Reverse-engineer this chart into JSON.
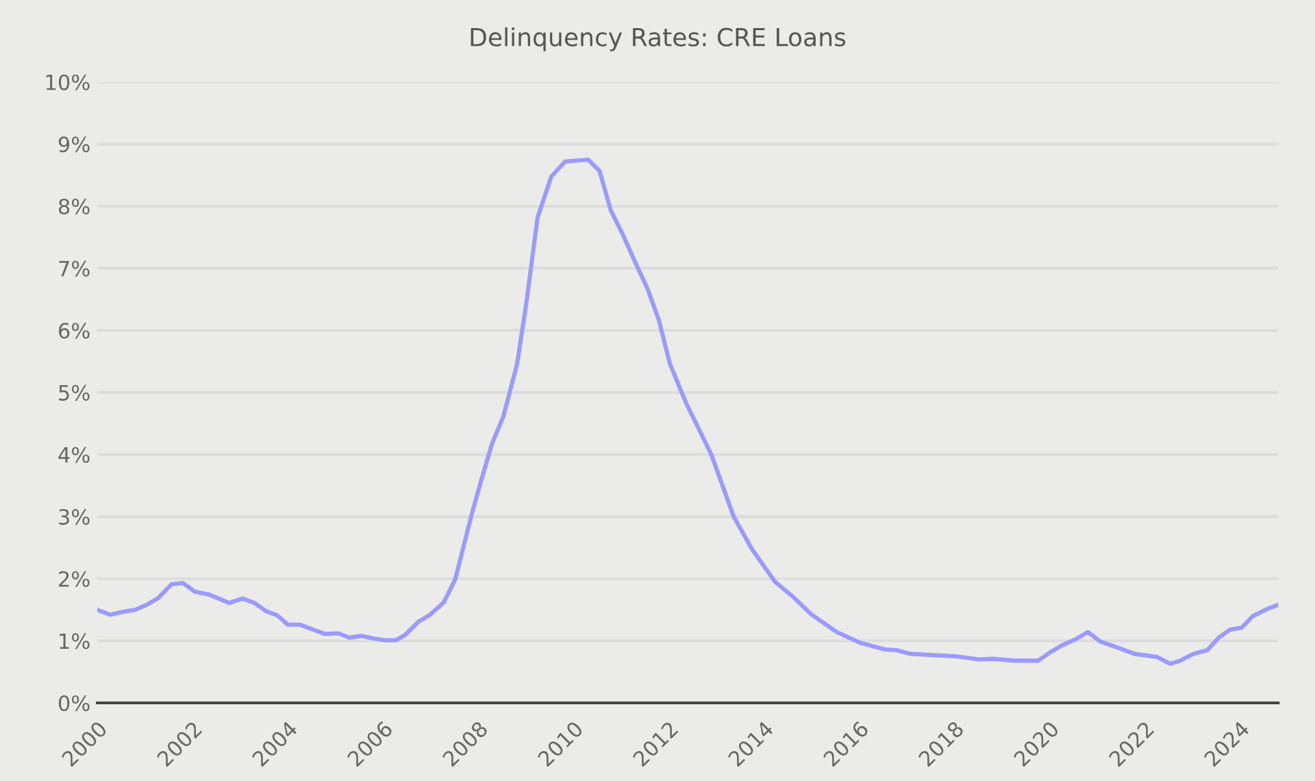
{
  "chart_data": {
    "type": "line",
    "title": "Delinquency Rates: CRE Loans",
    "x": [
      2000.0,
      2000.27,
      2000.56,
      2000.8,
      2001.04,
      2001.28,
      2001.56,
      2001.8,
      2002.05,
      2002.33,
      2002.77,
      2003.05,
      2003.3,
      2003.54,
      2003.78,
      2004.0,
      2004.26,
      2004.5,
      2004.78,
      2005.07,
      2005.3,
      2005.55,
      2005.79,
      2006.03,
      2006.27,
      2006.46,
      2006.75,
      2006.99,
      2007.28,
      2007.52,
      2007.86,
      2008.05,
      2008.29,
      2008.53,
      2008.82,
      2009.01,
      2009.25,
      2009.54,
      2009.83,
      2010.31,
      2010.55,
      2010.79,
      2011.03,
      2011.31,
      2011.56,
      2011.8,
      2012.03,
      2012.37,
      2012.9,
      2013.37,
      2013.76,
      2014.24,
      2014.63,
      2015.01,
      2015.54,
      2016.02,
      2016.55,
      2016.79,
      2017.08,
      2017.56,
      2018.04,
      2018.52,
      2018.81,
      2019.29,
      2019.77,
      2020.01,
      2020.25,
      2020.54,
      2020.81,
      2021.07,
      2021.4,
      2021.79,
      2022.27,
      2022.54,
      2022.75,
      2023.03,
      2023.32,
      2023.56,
      2023.8,
      2024.04,
      2024.28,
      2024.57,
      2024.81
    ],
    "series": [
      {
        "color": "#9a9aff",
        "values": [
          1.5,
          1.42,
          1.47,
          1.5,
          1.58,
          1.69,
          1.91,
          1.93,
          1.79,
          1.75,
          1.61,
          1.68,
          1.61,
          1.48,
          1.41,
          1.26,
          1.26,
          1.19,
          1.11,
          1.12,
          1.05,
          1.08,
          1.04,
          1.01,
          1.01,
          1.09,
          1.31,
          1.42,
          1.62,
          1.99,
          3.02,
          3.54,
          4.17,
          4.61,
          5.46,
          6.42,
          7.82,
          8.48,
          8.72,
          8.75,
          8.57,
          7.93,
          7.56,
          7.08,
          6.67,
          6.16,
          5.46,
          4.83,
          4.0,
          3.0,
          2.47,
          1.95,
          1.7,
          1.42,
          1.14,
          0.97,
          0.86,
          0.85,
          0.79,
          0.77,
          0.75,
          0.7,
          0.71,
          0.68,
          0.68,
          0.81,
          0.92,
          1.02,
          1.14,
          0.99,
          0.9,
          0.79,
          0.74,
          0.63,
          0.68,
          0.79,
          0.85,
          1.05,
          1.18,
          1.21,
          1.4,
          1.51,
          1.58
        ]
      }
    ],
    "xlim": [
      2000,
      2024.81
    ],
    "xticks": [
      2000,
      2002,
      2004,
      2006,
      2008,
      2010,
      2012,
      2014,
      2016,
      2018,
      2020,
      2022,
      2024
    ],
    "ylim": [
      0,
      10
    ],
    "yticks": [
      {
        "value": 0,
        "label": "0%"
      },
      {
        "value": 1,
        "label": "1%"
      },
      {
        "value": 2,
        "label": "2%"
      },
      {
        "value": 3,
        "label": "3%"
      },
      {
        "value": 4,
        "label": "4%"
      },
      {
        "value": 5,
        "label": "5%"
      },
      {
        "value": 6,
        "label": "6%"
      },
      {
        "value": 7,
        "label": "7%"
      },
      {
        "value": 8,
        "label": "8%"
      },
      {
        "value": 9,
        "label": "9%"
      },
      {
        "value": 10,
        "label": "10%"
      }
    ],
    "grid": "y",
    "legend": false,
    "marker": "none",
    "line_style": "solid"
  }
}
